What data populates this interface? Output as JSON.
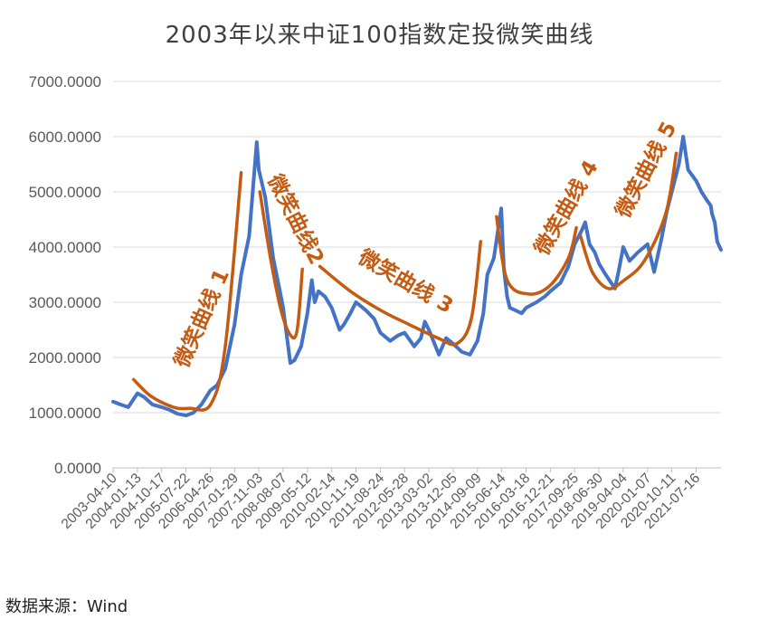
{
  "title": "2003年以来中证100指数定投微笑曲线",
  "source": "数据来源：Wind",
  "colors": {
    "series": "#4472C4",
    "smile": "#C55A11",
    "grid": "#d9d9d9",
    "axis": "#bfbfbf"
  },
  "chart_data": {
    "type": "line",
    "title": "2003年以来中证100指数定投微笑曲线",
    "xlabel": "",
    "ylabel": "",
    "ylim": [
      0,
      7000
    ],
    "y_ticks": [
      "0.0000",
      "1000.0000",
      "2000.0000",
      "3000.0000",
      "4000.0000",
      "5000.0000",
      "6000.0000",
      "7000.0000"
    ],
    "x_ticks": [
      "2003-04-10",
      "2004-01-13",
      "2004-10-17",
      "2005-07-22",
      "2006-04-26",
      "2007-01-29",
      "2007-11-03",
      "2008-08-07",
      "2009-05-12",
      "2010-02-14",
      "2010-11-19",
      "2011-08-24",
      "2012-05-28",
      "2013-03-02",
      "2013-12-05",
      "2014-09-09",
      "2015-06-14",
      "2016-03-18",
      "2016-12-21",
      "2017-09-25",
      "2018-06-30",
      "2019-04-04",
      "2020-01-07",
      "2020-10-11",
      "2021-07-16"
    ],
    "grid": true,
    "series": [
      {
        "x": [
          "2003-04-10",
          "2003-07-01",
          "2003-10-01",
          "2004-01-13",
          "2004-04-01",
          "2004-07-01",
          "2004-10-17",
          "2005-01-15",
          "2005-04-15",
          "2005-07-22",
          "2005-10-15",
          "2006-01-15",
          "2006-04-26",
          "2006-07-15",
          "2006-10-15",
          "2007-01-29",
          "2007-04-15",
          "2007-07-15",
          "2007-10-10",
          "2007-11-03",
          "2008-01-15",
          "2008-04-15",
          "2008-07-01",
          "2008-08-07",
          "2008-10-28",
          "2008-12-15",
          "2009-03-01",
          "2009-05-12",
          "2009-07-01",
          "2009-08-04",
          "2009-09-15",
          "2009-12-01",
          "2010-02-14",
          "2010-05-15",
          "2010-07-05",
          "2010-09-15",
          "2010-11-19",
          "2011-03-15",
          "2011-06-15",
          "2011-08-24",
          "2011-12-15",
          "2012-03-15",
          "2012-05-28",
          "2012-09-15",
          "2012-12-01",
          "2013-01-15",
          "2013-03-02",
          "2013-06-25",
          "2013-09-15",
          "2013-12-05",
          "2014-03-15",
          "2014-06-15",
          "2014-09-09",
          "2014-11-15",
          "2014-12-31",
          "2015-03-15",
          "2015-06-08",
          "2015-07-08",
          "2015-08-15",
          "2015-09-15",
          "2016-01-28",
          "2016-03-18",
          "2016-07-15",
          "2016-10-15",
          "2016-12-21",
          "2017-04-15",
          "2017-07-15",
          "2017-09-25",
          "2017-12-15",
          "2018-01-24",
          "2018-03-15",
          "2018-05-15",
          "2018-06-30",
          "2018-09-15",
          "2018-12-31",
          "2019-02-15",
          "2019-04-04",
          "2019-06-15",
          "2019-09-15",
          "2020-01-07",
          "2020-03-23",
          "2020-06-15",
          "2020-08-15",
          "2020-10-11",
          "2020-12-31",
          "2021-02-18",
          "2021-04-15",
          "2021-07-16",
          "2021-09-15",
          "2021-11-15",
          "2021-12-31",
          "2022-01-15",
          "2022-02-15",
          "2022-03-15",
          "2022-04-27"
        ],
        "values": [
          1200,
          1150,
          1100,
          1350,
          1280,
          1150,
          1100,
          1050,
          980,
          950,
          1000,
          1150,
          1400,
          1500,
          1800,
          2600,
          3500,
          4200,
          5900,
          5400,
          4900,
          3800,
          3200,
          2900,
          1900,
          1950,
          2200,
          2800,
          3400,
          3000,
          3200,
          3100,
          2900,
          2500,
          2600,
          2800,
          3000,
          2850,
          2700,
          2450,
          2300,
          2400,
          2450,
          2200,
          2350,
          2650,
          2500,
          2050,
          2350,
          2250,
          2100,
          2050,
          2300,
          2800,
          3500,
          3800,
          4700,
          3600,
          3100,
          2900,
          2800,
          2900,
          3000,
          3100,
          3200,
          3350,
          3650,
          4050,
          4300,
          4450,
          4050,
          3900,
          3700,
          3500,
          3250,
          3600,
          4000,
          3750,
          3900,
          4050,
          3550,
          4150,
          4650,
          5000,
          5500,
          6000,
          5400,
          5200,
          5000,
          4850,
          4750,
          4600,
          4450,
          4100,
          3950
        ]
      }
    ],
    "annotations": [
      {
        "text": "微笑曲线 1",
        "curve_x": [
          "2003-12-01",
          "2004-06-15",
          "2005-03-01",
          "2005-09-01",
          "2006-05-01",
          "2006-10-15",
          "2007-04-15"
        ],
        "curve_y": [
          1600,
          1300,
          1100,
          1080,
          1150,
          2200,
          5350
        ]
      },
      {
        "text": "微笑曲线2",
        "curve_x": [
          "2007-11-15",
          "2008-03-15",
          "2008-07-15",
          "2008-11-01",
          "2009-01-15",
          "2009-03-15"
        ],
        "curve_y": [
          5000,
          3800,
          2850,
          2400,
          2500,
          3600
        ]
      },
      {
        "text": "微笑曲线 3",
        "curve_x": [
          "2009-10-01",
          "2010-09-15",
          "2011-09-01",
          "2012-07-15",
          "2013-06-15",
          "2014-01-15",
          "2014-07-01",
          "2014-10-15"
        ],
        "curve_y": [
          3650,
          3200,
          2850,
          2600,
          2350,
          2250,
          2700,
          4100
        ]
      },
      {
        "text": "微笑曲线 4",
        "curve_x": [
          "2015-04-15",
          "2015-08-15",
          "2016-04-15",
          "2016-12-15",
          "2017-07-15",
          "2017-10-15"
        ],
        "curve_y": [
          4550,
          3400,
          3150,
          3300,
          3800,
          4350
        ]
      },
      {
        "text": "微笑曲线 5",
        "curve_x": [
          "2017-12-01",
          "2018-04-15",
          "2018-10-15",
          "2019-04-15",
          "2019-12-01",
          "2020-08-01",
          "2020-12-01"
        ],
        "curve_y": [
          4200,
          3550,
          3250,
          3400,
          3750,
          4600,
          5700
        ]
      }
    ]
  }
}
